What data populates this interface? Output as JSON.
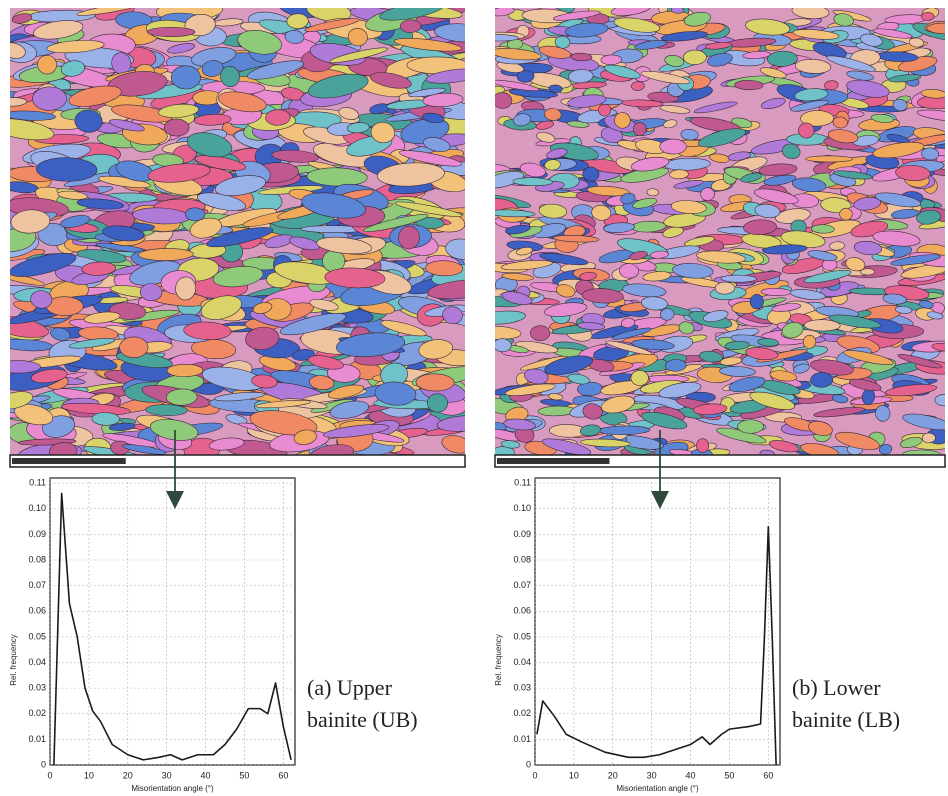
{
  "chart_data": [
    {
      "type": "line",
      "xlabel": "Misorientation angle (°)",
      "ylabel": "Rel. frequency",
      "annotations": [
        "(a) Upper",
        "bainite (UB)"
      ],
      "x": [
        1,
        3,
        5,
        7,
        9,
        11,
        13,
        16,
        20,
        24,
        28,
        31,
        34,
        38,
        42,
        45,
        48,
        51,
        54,
        56,
        58,
        60,
        62
      ],
      "values": [
        0.0,
        0.106,
        0.063,
        0.05,
        0.03,
        0.021,
        0.017,
        0.008,
        0.004,
        0.002,
        0.003,
        0.004,
        0.002,
        0.004,
        0.004,
        0.008,
        0.014,
        0.022,
        0.022,
        0.02,
        0.032,
        0.015,
        0.002
      ],
      "color": "#1a1a1a",
      "grid": true,
      "xlim": [
        0,
        63
      ],
      "ylim": [
        0,
        0.112
      ],
      "xticks": [
        0,
        10,
        20,
        30,
        40,
        50,
        60
      ],
      "yticks": [
        0,
        0.01,
        0.02,
        0.03,
        0.04,
        0.05,
        0.06,
        0.07,
        0.08,
        0.09,
        {
          "value": 0.1,
          "label": "0.10"
        },
        0.11
      ]
    },
    {
      "type": "line",
      "xlabel": "Misorientation angle (°)",
      "ylabel": "Rel. frequency",
      "annotations": [
        "(b) Lower",
        "bainite (LB)"
      ],
      "x": [
        0.5,
        2,
        5,
        8,
        12,
        18,
        24,
        28,
        32,
        36,
        40,
        43,
        45,
        48,
        50,
        55,
        58,
        59,
        60,
        61,
        62
      ],
      "values": [
        0.012,
        0.025,
        0.019,
        0.012,
        0.009,
        0.005,
        0.003,
        0.003,
        0.004,
        0.006,
        0.008,
        0.011,
        0.008,
        0.012,
        0.014,
        0.015,
        0.016,
        0.05,
        0.093,
        0.05,
        0.0
      ],
      "color": "#1a1a1a",
      "grid": true,
      "xlim": [
        0,
        63
      ],
      "ylim": [
        0,
        0.112
      ],
      "xticks": [
        0,
        10,
        20,
        30,
        40,
        50,
        60
      ],
      "yticks": [
        0,
        0.01,
        0.02,
        0.03,
        0.04,
        0.05,
        0.06,
        0.07,
        0.08,
        0.09,
        {
          "value": 0.1,
          "label": "0.10"
        },
        0.11
      ]
    }
  ]
}
